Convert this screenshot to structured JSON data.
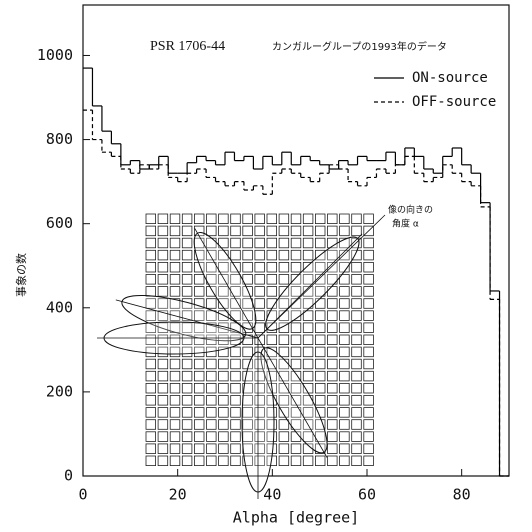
{
  "chart_data": {
    "type": "histogram",
    "title": "PSR 1706-44",
    "subtitle": "カンガルーグループの1993年のデータ",
    "xlabel": "Alpha [degree]",
    "ylabel": "事象の数",
    "bins": [
      0,
      2,
      4,
      6,
      8,
      10,
      12,
      14,
      16,
      18,
      20,
      22,
      24,
      26,
      28,
      30,
      32,
      34,
      36,
      38,
      40,
      42,
      44,
      46,
      48,
      50,
      52,
      54,
      56,
      58,
      60,
      62,
      64,
      66,
      68,
      70,
      72,
      74,
      76,
      78,
      80,
      82,
      84,
      86,
      88,
      90
    ],
    "series": [
      {
        "name": "ON-source",
        "color": "#000000",
        "linestyle": "solid",
        "values": [
          970,
          880,
          820,
          790,
          740,
          750,
          730,
          740,
          760,
          720,
          720,
          745,
          760,
          750,
          740,
          770,
          750,
          760,
          730,
          760,
          740,
          770,
          740,
          760,
          750,
          740,
          730,
          750,
          740,
          760,
          750,
          750,
          770,
          740,
          780,
          760,
          730,
          720,
          760,
          780,
          740,
          720,
          650,
          440,
          0
        ]
      },
      {
        "name": "OFF-source",
        "color": "#000000",
        "linestyle": "dashed",
        "values": [
          870,
          800,
          770,
          760,
          730,
          720,
          740,
          730,
          740,
          710,
          700,
          720,
          730,
          710,
          700,
          690,
          700,
          680,
          690,
          670,
          720,
          730,
          720,
          710,
          700,
          720,
          740,
          730,
          700,
          690,
          710,
          730,
          720,
          740,
          760,
          720,
          700,
          710,
          740,
          720,
          700,
          690,
          640,
          420,
          0
        ]
      }
    ],
    "xlim": [
      0,
      90
    ],
    "ylim": [
      0,
      1120
    ],
    "xticks": [
      0,
      20,
      40,
      60,
      80
    ],
    "yticks": [
      0,
      200,
      400,
      600,
      800,
      1000
    ],
    "legend": "upper right",
    "annotations": [
      "像の向きの",
      "角度 α"
    ]
  }
}
